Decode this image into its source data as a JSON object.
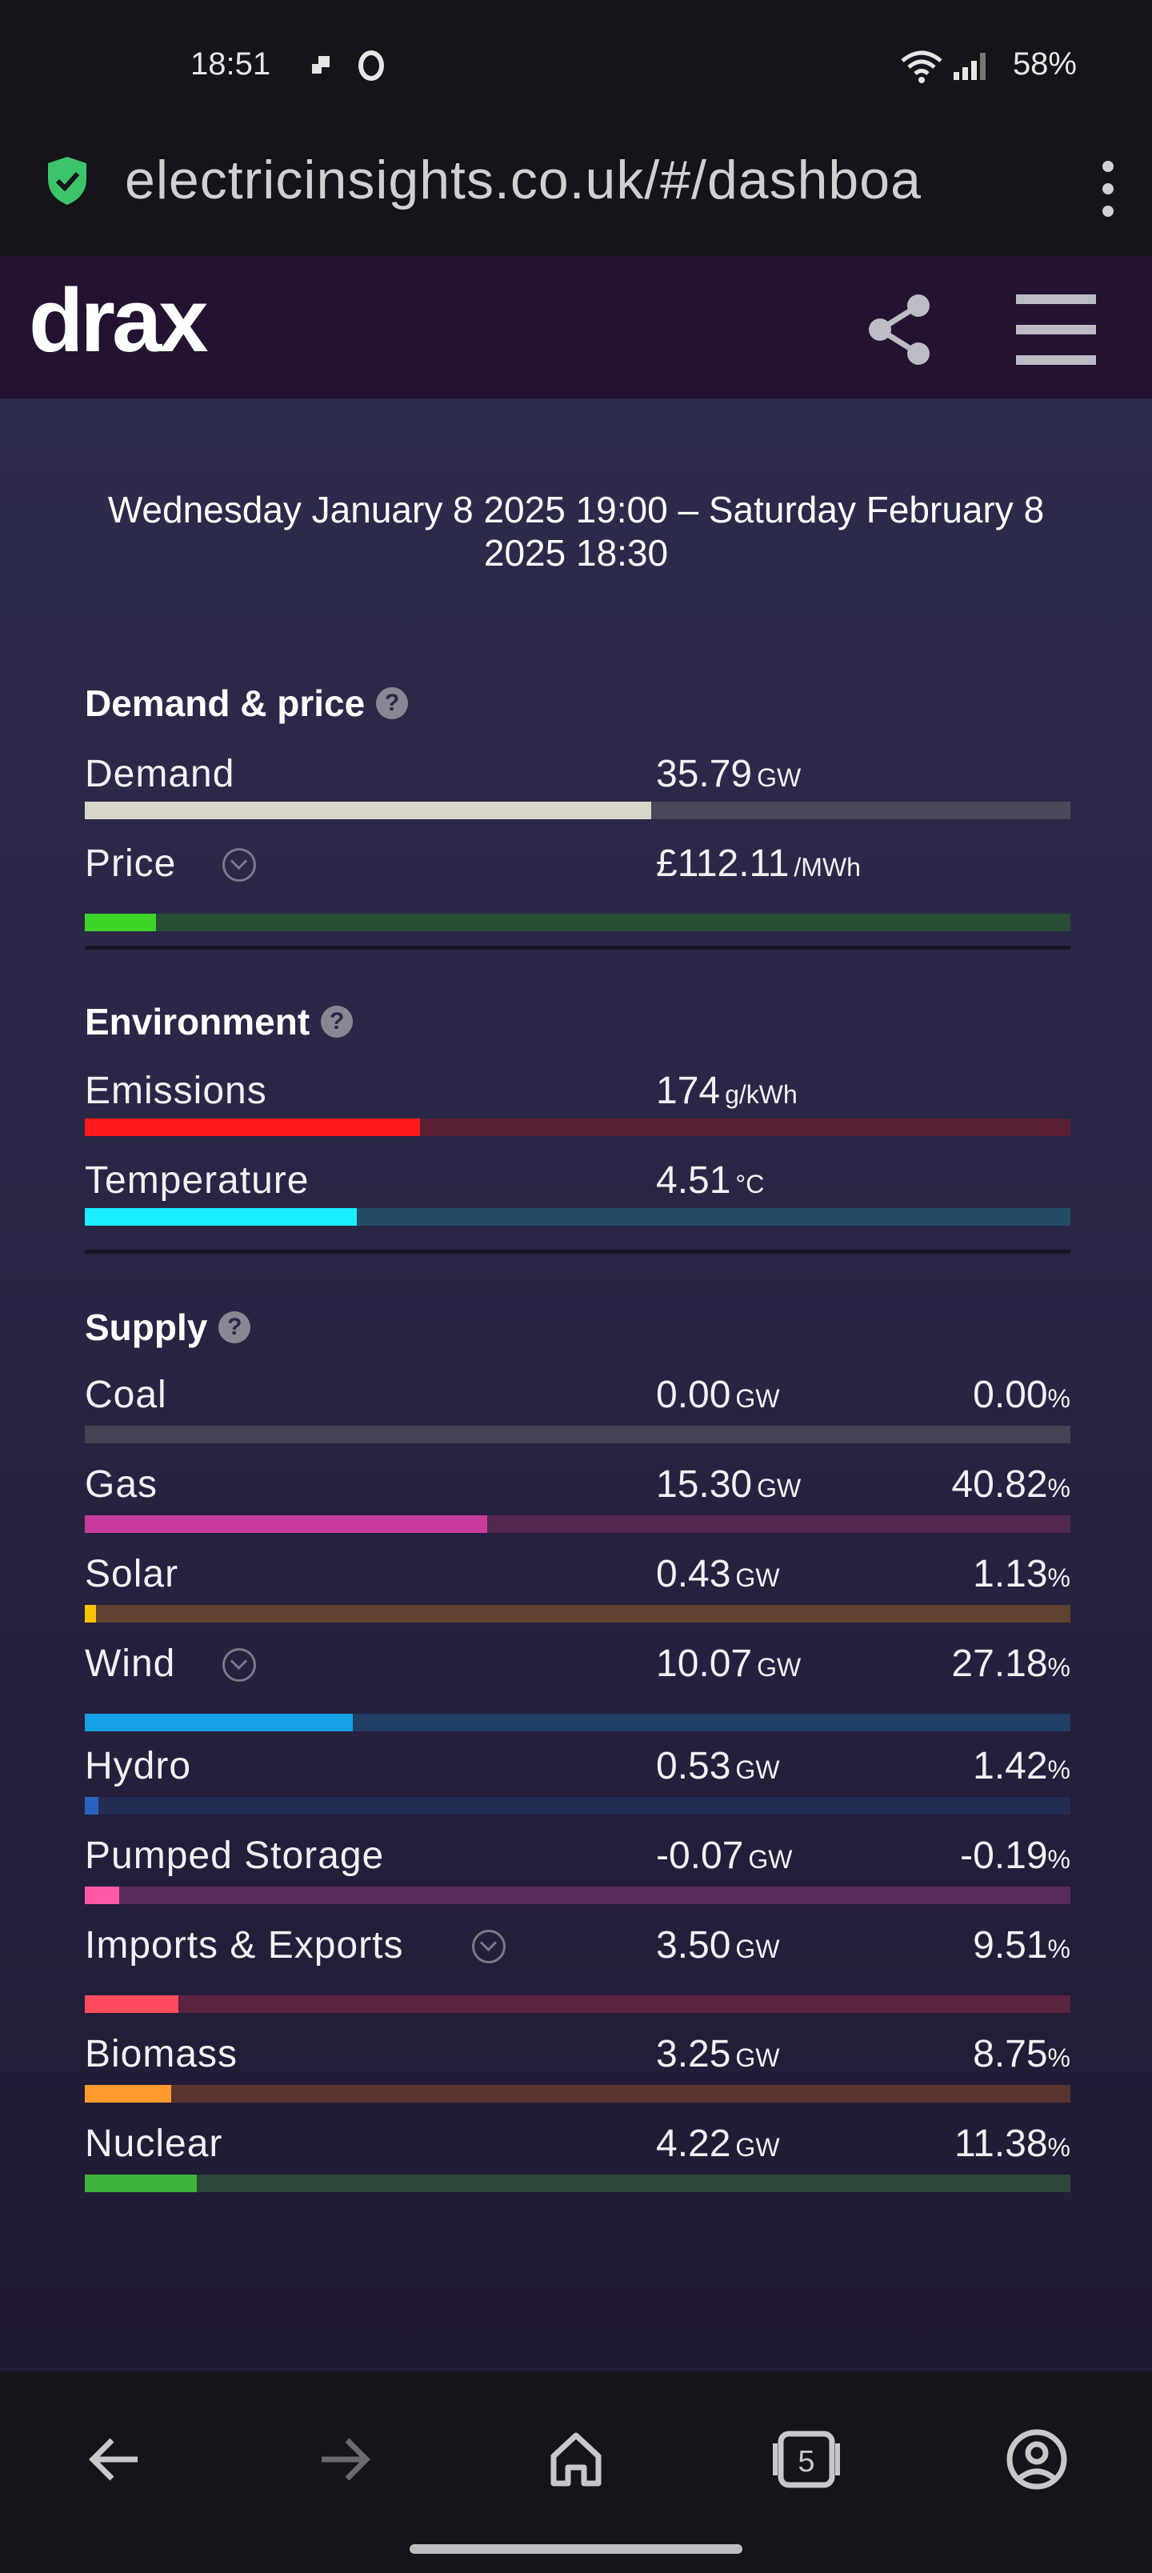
{
  "status_bar": {
    "time": "18:51",
    "battery": "58%"
  },
  "browser": {
    "url": "electricinsights.co.uk/#/dashboa"
  },
  "header": {
    "logo": "drax"
  },
  "date_range": "Wednesday January 8 2025 19:00 – Saturday February 8 2025 18:30",
  "sections": {
    "demand_price": {
      "title": "Demand & price",
      "rows": [
        {
          "label": "Demand",
          "value": "35.79",
          "unit": "GW",
          "fraction": 0.575,
          "color": "#d8d6c8",
          "track": "#4a4858"
        },
        {
          "label": "Price",
          "value": "£112.11",
          "unit": "/MWh",
          "fraction": 0.072,
          "color": "#3fd42a",
          "track": "#284c34"
        }
      ]
    },
    "environment": {
      "title": "Environment",
      "rows": [
        {
          "label": "Emissions",
          "value": "174",
          "unit": "g/kWh",
          "fraction": 0.34,
          "color": "#ff1a1a",
          "track": "#5a1f33"
        },
        {
          "label": "Temperature",
          "value": "4.51",
          "unit": "°C",
          "fraction": 0.276,
          "color": "#1aeeff",
          "track": "#244c66"
        }
      ]
    },
    "supply": {
      "title": "Supply",
      "rows": [
        {
          "label": "Coal",
          "value": "0.00",
          "unit": "GW",
          "pct": "0.00",
          "fraction": 0.0,
          "color": "#6a6a72",
          "track": "#444253"
        },
        {
          "label": "Gas",
          "value": "15.30",
          "unit": "GW",
          "pct": "40.82",
          "fraction": 0.408,
          "color": "#c83c9c",
          "track": "#52284e"
        },
        {
          "label": "Solar",
          "value": "0.43",
          "unit": "GW",
          "pct": "1.13",
          "fraction": 0.011,
          "color": "#f5c400",
          "track": "#5e4230"
        },
        {
          "label": "Wind",
          "value": "10.07",
          "unit": "GW",
          "pct": "27.18",
          "fraction": 0.272,
          "color": "#16a0e6",
          "track": "#203e66"
        },
        {
          "label": "Hydro",
          "value": "0.53",
          "unit": "GW",
          "pct": "1.42",
          "fraction": 0.014,
          "color": "#2a62c0",
          "track": "#232c52"
        },
        {
          "label": "Pumped Storage",
          "value": "-0.07",
          "unit": "GW",
          "pct": "-0.19",
          "fraction": 0.035,
          "color": "#ff5aa8",
          "track": "#5a2a58"
        },
        {
          "label": "Imports & Exports",
          "value": "3.50",
          "unit": "GW",
          "pct": "9.51",
          "fraction": 0.095,
          "color": "#ff4a5e",
          "track": "#5a2440"
        },
        {
          "label": "Biomass",
          "value": "3.25",
          "unit": "GW",
          "pct": "8.75",
          "fraction": 0.088,
          "color": "#ff9a2e",
          "track": "#5a3430"
        },
        {
          "label": "Nuclear",
          "value": "4.22",
          "unit": "GW",
          "pct": "11.38",
          "fraction": 0.114,
          "color": "#3cb43a",
          "track": "#2c4838"
        }
      ]
    }
  },
  "pct_unit": "%",
  "icons": {
    "shield": "shield-check-icon",
    "menu": "more-vert-icon",
    "share": "share-icon",
    "hamburger": "hamburger-menu-icon",
    "back": "back-arrow-icon",
    "forward": "forward-arrow-icon",
    "home": "home-icon",
    "tabs": "tabs-icon",
    "account": "account-icon"
  },
  "tabs_count": "5"
}
